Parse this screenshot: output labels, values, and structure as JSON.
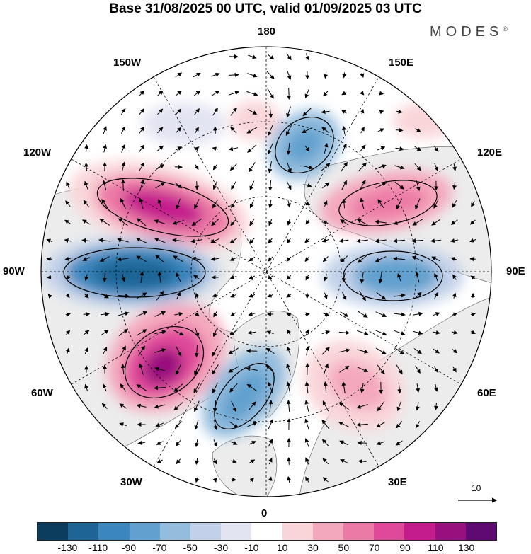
{
  "header": {
    "title": "Base 31/08/2025 00 UTC, valid 01/09/2025 03 UTC",
    "brand": "MODES",
    "brand_mark": "®"
  },
  "map": {
    "projection": "north-polar-stereographic",
    "longitude_labels": {
      "top": "180",
      "bottom": "0",
      "left": "90W",
      "right": "90E",
      "upper_left_1": "150W",
      "upper_left_2": "120W",
      "lower_left_1": "60W",
      "lower_left_2": "30W",
      "upper_right_1": "150E",
      "upper_right_2": "120E",
      "lower_right_1": "60E",
      "lower_right_2": "30E"
    },
    "anomaly_centers": [
      {
        "sign": "positive",
        "region": "north america / pacific",
        "strength": 90
      },
      {
        "sign": "negative",
        "region": "hudson bay / canada",
        "strength": -90
      },
      {
        "sign": "positive",
        "region": "greenland / labrador sea",
        "strength": 110
      },
      {
        "sign": "negative",
        "region": "north atlantic / uk",
        "strength": -50
      },
      {
        "sign": "positive",
        "region": "scandinavia / russia",
        "strength": 50
      },
      {
        "sign": "negative",
        "region": "central siberia",
        "strength": -70
      },
      {
        "sign": "positive",
        "region": "east siberia",
        "strength": 70
      },
      {
        "sign": "negative",
        "region": "bering sea",
        "strength": -50
      },
      {
        "sign": "positive",
        "region": "north pacific",
        "strength": 30
      }
    ],
    "reference_vector": {
      "value": "10"
    }
  },
  "colorbar": {
    "ticks": [
      "-130",
      "-110",
      "-90",
      "-70",
      "-50",
      "-30",
      "-10",
      "10",
      "30",
      "50",
      "70",
      "90",
      "110",
      "130"
    ],
    "colors": [
      "#0d3d5e",
      "#1e6595",
      "#3a86bd",
      "#62a1cf",
      "#93bcdd",
      "#c2d1e9",
      "#e3e4f2",
      "#ffffff",
      "#f9d5d9",
      "#f4a8bd",
      "#ec7aa6",
      "#e0489a",
      "#c41c8d",
      "#98107d",
      "#5e0a72"
    ]
  }
}
